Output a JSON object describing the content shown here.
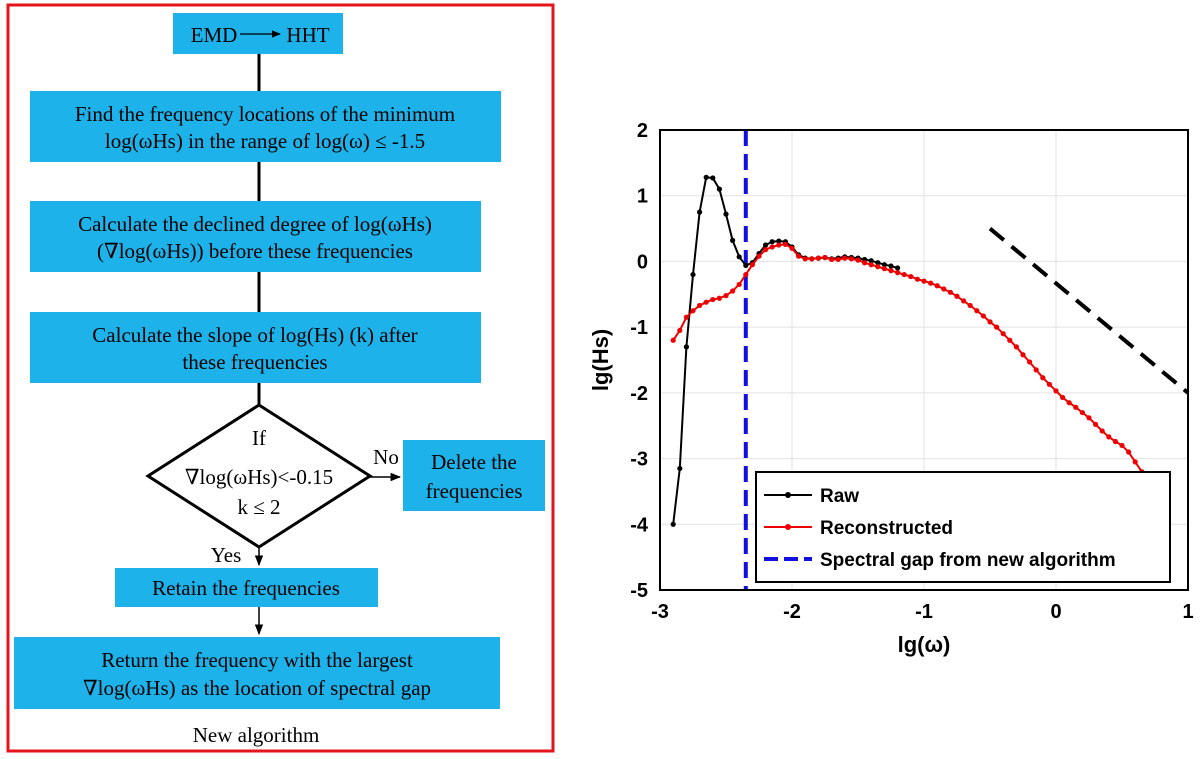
{
  "flowchart": {
    "caption": "New algorithm",
    "colors": {
      "box": "#1eb2ea",
      "frame": "#e3141b"
    },
    "start": {
      "left": "EMD",
      "right": "HHT"
    },
    "steps": [
      {
        "lines": [
          "Find the frequency locations of the minimum",
          "log(ωHs) in the range of log(ω) ≤ -1.5"
        ]
      },
      {
        "lines": [
          "Calculate the declined degree of log(ωHs)",
          "(∇log(ωHs)) before these frequencies"
        ]
      },
      {
        "lines": [
          "Calculate the slope of log(Hs) (k) after",
          "these frequencies"
        ]
      }
    ],
    "decision": {
      "lines": [
        "If",
        "∇log(ωHs)<-0.15",
        "k ≤ 2"
      ],
      "no_label": "No",
      "yes_label": "Yes"
    },
    "no_box": {
      "lines": [
        "Delete the",
        "frequencies"
      ]
    },
    "yes_box": {
      "lines": [
        "Retain the frequencies"
      ]
    },
    "final": {
      "lines": [
        "Return the frequency with the largest",
        "∇log(ωHs) as the location of spectral gap"
      ]
    }
  },
  "chart_data": {
    "type": "line",
    "xlabel": "lg(ω)",
    "ylabel": "lg(Hs)",
    "xlim": [
      -3,
      1
    ],
    "ylim": [
      -5,
      2
    ],
    "xticks": [
      -3,
      -2,
      -1,
      0,
      1
    ],
    "yticks": [
      2,
      1,
      0,
      -1,
      -2,
      -3,
      -4,
      -5
    ],
    "grid": true,
    "legend_position": "bottom-right",
    "series": [
      {
        "name": "Raw",
        "color": "#000000",
        "x": [
          -2.9,
          -2.85,
          -2.8,
          -2.75,
          -2.7,
          -2.65,
          -2.6,
          -2.55,
          -2.5,
          -2.45,
          -2.4,
          -2.35,
          -2.3,
          -2.25,
          -2.2,
          -2.15,
          -2.1,
          -2.05,
          -2.0,
          -1.95,
          -1.9,
          -1.85,
          -1.8,
          -1.75,
          -1.7,
          -1.65,
          -1.6,
          -1.55,
          -1.5,
          -1.45,
          -1.4,
          -1.35,
          -1.3,
          -1.25,
          -1.2
        ],
        "y": [
          -4.0,
          -3.15,
          -1.3,
          -0.2,
          0.75,
          1.28,
          1.27,
          1.1,
          0.72,
          0.32,
          0.07,
          -0.06,
          -0.02,
          0.12,
          0.25,
          0.3,
          0.31,
          0.3,
          0.22,
          0.1,
          0.05,
          0.04,
          0.05,
          0.06,
          0.04,
          0.05,
          0.07,
          0.06,
          0.05,
          0.03,
          0.01,
          -0.02,
          -0.05,
          -0.07,
          -0.1
        ]
      },
      {
        "name": "Reconstructed",
        "color": "#ee0000",
        "x": [
          -2.9,
          -2.85,
          -2.8,
          -2.75,
          -2.7,
          -2.65,
          -2.6,
          -2.55,
          -2.5,
          -2.45,
          -2.4,
          -2.35,
          -2.3,
          -2.25,
          -2.2,
          -2.15,
          -2.1,
          -2.05,
          -2.0,
          -1.95,
          -1.9,
          -1.85,
          -1.8,
          -1.75,
          -1.7,
          -1.65,
          -1.6,
          -1.55,
          -1.5,
          -1.45,
          -1.4,
          -1.35,
          -1.3,
          -1.25,
          -1.2,
          -1.15,
          -1.1,
          -1.05,
          -1.0,
          -0.95,
          -0.9,
          -0.85,
          -0.8,
          -0.75,
          -0.7,
          -0.65,
          -0.6,
          -0.55,
          -0.5,
          -0.45,
          -0.4,
          -0.35,
          -0.3,
          -0.25,
          -0.2,
          -0.15,
          -0.1,
          -0.05,
          0.0,
          0.05,
          0.1,
          0.15,
          0.2,
          0.25,
          0.3,
          0.35,
          0.4,
          0.45,
          0.5,
          0.55,
          0.6,
          0.65,
          0.68
        ],
        "y": [
          -1.2,
          -1.05,
          -0.85,
          -0.75,
          -0.67,
          -0.62,
          -0.58,
          -0.56,
          -0.52,
          -0.45,
          -0.35,
          -0.2,
          -0.05,
          0.08,
          0.18,
          0.22,
          0.25,
          0.26,
          0.2,
          0.08,
          0.04,
          0.04,
          0.05,
          0.06,
          0.03,
          0.03,
          0.05,
          0.04,
          0.02,
          -0.02,
          -0.05,
          -0.08,
          -0.11,
          -0.14,
          -0.17,
          -0.2,
          -0.23,
          -0.27,
          -0.3,
          -0.33,
          -0.37,
          -0.42,
          -0.47,
          -0.53,
          -0.6,
          -0.67,
          -0.75,
          -0.83,
          -0.92,
          -1.0,
          -1.1,
          -1.2,
          -1.3,
          -1.42,
          -1.53,
          -1.65,
          -1.77,
          -1.87,
          -1.97,
          -2.07,
          -2.15,
          -2.22,
          -2.3,
          -2.38,
          -2.48,
          -2.58,
          -2.67,
          -2.74,
          -2.8,
          -2.9,
          -3.05,
          -3.2,
          -3.3
        ]
      },
      {
        "name": "Spectral gap from new algorithm",
        "color": "#1010e0",
        "x": [
          -2.35,
          -2.35
        ],
        "y": [
          2,
          -5
        ]
      }
    ],
    "reference_line": {
      "x": [
        -0.5,
        1.0
      ],
      "y": [
        0.5,
        -2.0
      ],
      "color": "#000000"
    }
  }
}
